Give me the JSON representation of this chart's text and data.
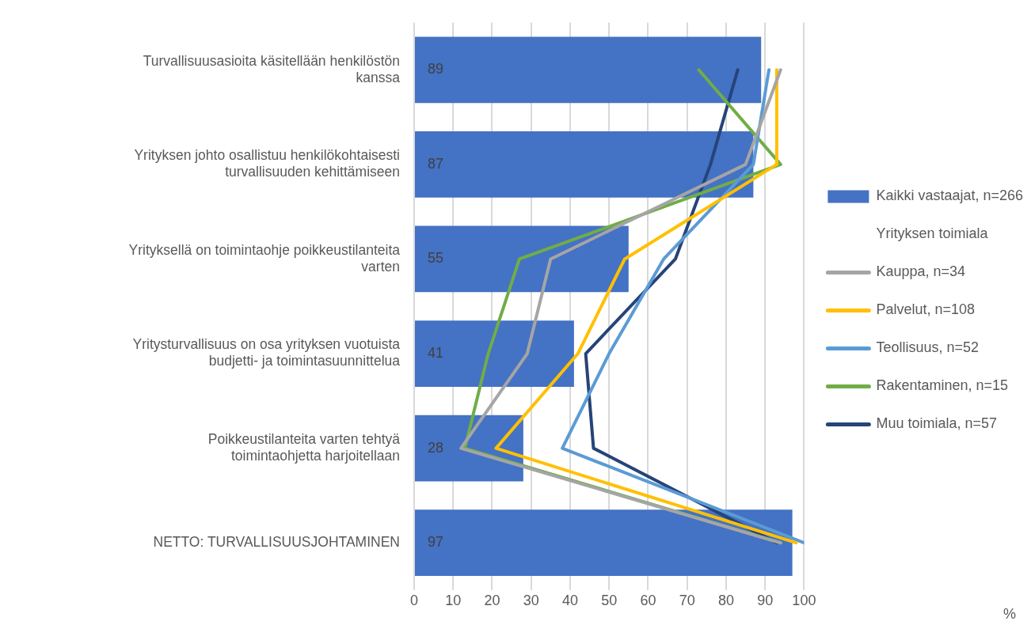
{
  "chart_data": {
    "type": "bar",
    "orientation": "horizontal",
    "categories": [
      "Turvallisuusasioita käsitellään henkilöstön kanssa",
      "Yrityksen johto osallistuu henkilökohtaisesti turvallisuuden kehittämiseen",
      "Yrityksellä on toimintaohje poikkeustilanteita varten",
      "Yritysturvallisuus on osa yrityksen vuotuista budjetti- ja toimintasuunnittelua",
      "Poikkeustilanteita varten tehtyä toimintaohjetta harjoitellaan",
      "NETTO: TURVALLISUUSJOHTAMINEN"
    ],
    "series": [
      {
        "name": "Kaikki vastaajat, n=266",
        "color": "#4472c4",
        "values": [
          89,
          87,
          55,
          41,
          28,
          97
        ],
        "value_labels": [
          "89",
          "87",
          "55",
          "41",
          "28",
          "97"
        ]
      },
      {
        "name": "Kauppa, n=34",
        "type": "line",
        "color": "#a5a5a5",
        "values": [
          94,
          85,
          35,
          29,
          12,
          94
        ]
      },
      {
        "name": "Palvelut, n=108",
        "type": "line",
        "color": "#ffc000",
        "values": [
          93,
          93,
          54,
          42,
          21,
          98
        ]
      },
      {
        "name": "Teollisuus, n=52",
        "type": "line",
        "color": "#5b9bd5",
        "values": [
          91,
          87,
          64,
          50,
          38,
          100
        ]
      },
      {
        "name": "Rakentaminen, n=15",
        "type": "line",
        "color": "#70ad47",
        "values": [
          73,
          94,
          27,
          19,
          13,
          94
        ]
      },
      {
        "name": "Muu toimiala, n=57",
        "type": "line",
        "color": "#264478",
        "values": [
          83,
          76,
          67,
          44,
          46,
          93
        ]
      }
    ],
    "legend_title": "Yrityksen toimiala",
    "annotations": [
      "%"
    ],
    "xlim": [
      0,
      100
    ],
    "xticks": [
      0,
      10,
      20,
      30,
      40,
      50,
      60,
      70,
      80,
      90,
      100
    ],
    "grid": "x",
    "legend": "right",
    "marker": "none",
    "line_style": "solid"
  }
}
